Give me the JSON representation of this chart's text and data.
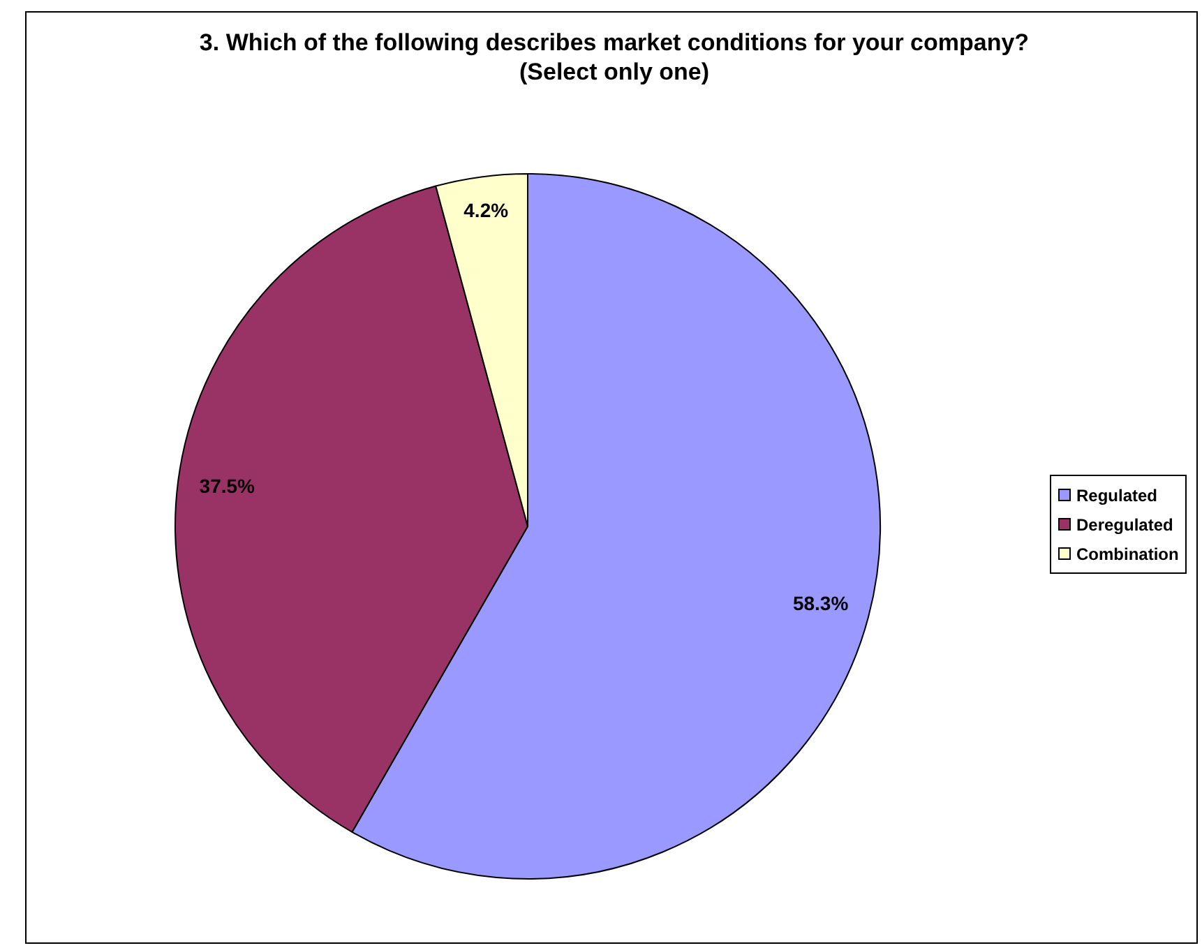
{
  "chart_data": {
    "type": "pie",
    "title": "3. Which of the following describes market conditions for your company? (Select only one)",
    "categories": [
      "Regulated",
      "Deregulated",
      "Combination"
    ],
    "values": [
      58.3,
      37.5,
      4.2
    ],
    "value_labels": [
      "58.3%",
      "37.5%",
      "4.2%"
    ],
    "colors": [
      "#9999ff",
      "#993366",
      "#ffffcc"
    ],
    "legend": "right"
  }
}
